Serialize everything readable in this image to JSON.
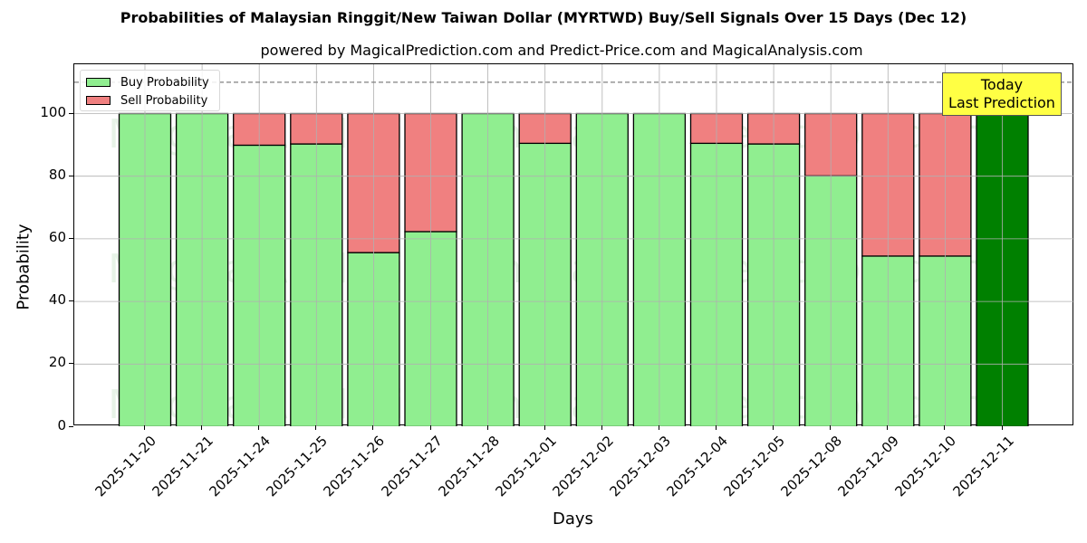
{
  "chart_data": {
    "type": "bar",
    "stacked": true,
    "title": "Probabilities of Malaysian Ringgit/New Taiwan Dollar (MYRTWD) Buy/Sell Signals Over 15 Days (Dec 12)",
    "subtitle": "powered by MagicalPrediction.com and Predict-Price.com and MagicalAnalysis.com",
    "xlabel": "Days",
    "ylabel": "Probability",
    "ylim": [
      0,
      115
    ],
    "yticks": [
      0,
      20,
      40,
      60,
      80,
      100
    ],
    "grid": true,
    "legend_position": "upper left",
    "categories": [
      "2025-11-20",
      "2025-11-21",
      "2025-11-24",
      "2025-11-25",
      "2025-11-26",
      "2025-11-27",
      "2025-11-28",
      "2025-12-01",
      "2025-12-02",
      "2025-12-03",
      "2025-12-04",
      "2025-12-05",
      "2025-12-08",
      "2025-12-09",
      "2025-12-10",
      "2025-12-11"
    ],
    "series": [
      {
        "name": "Buy Probability",
        "color": "#90ee90",
        "values": [
          100,
          100,
          89.9,
          90.3,
          55.6,
          62.3,
          100,
          90.5,
          100,
          100,
          90.5,
          90.3,
          80.1,
          54.5,
          54.5,
          100
        ]
      },
      {
        "name": "Sell Probability",
        "color": "#f08080",
        "values": [
          0,
          0,
          10.1,
          9.7,
          44.4,
          37.7,
          0,
          9.5,
          0,
          0,
          9.5,
          9.7,
          19.9,
          45.5,
          45.5,
          0
        ]
      }
    ],
    "highlight": {
      "index": 15,
      "color": "#008000",
      "label": "Today\nLast Prediction"
    },
    "reference_line": {
      "y": 110,
      "style": "dashed",
      "color": "#808080"
    },
    "annotation": {
      "line1": "Today",
      "line2": "Last Prediction",
      "background": "#ffff44"
    },
    "watermarks": [
      "MagicalAnalysis.com",
      "MagicalPrediction.com"
    ]
  }
}
